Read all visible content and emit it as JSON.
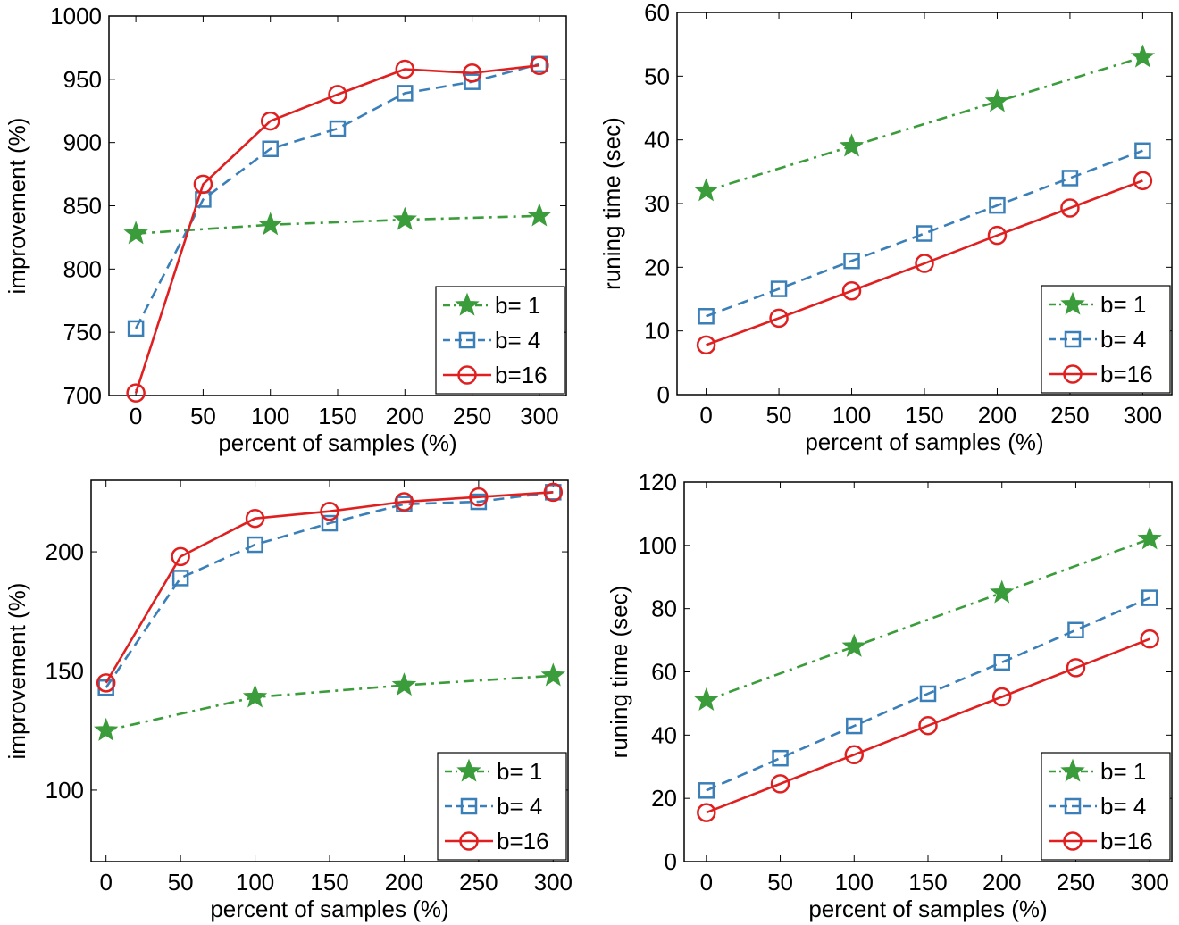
{
  "chart_data": [
    {
      "type": "line",
      "xlabel": "percent of samples (%)",
      "ylabel": "improvement (%)",
      "x": [
        0,
        50,
        100,
        150,
        200,
        250,
        300
      ],
      "xticks": [
        "0",
        "50",
        "100",
        "150",
        "200",
        "250",
        "300"
      ],
      "xlim": [
        -20,
        320
      ],
      "ylim": [
        700,
        1000
      ],
      "yticks": [
        "700",
        "750",
        "800",
        "850",
        "900",
        "950",
        "1000"
      ],
      "legend_position": "bottom-right",
      "series": [
        {
          "name": "b= 1",
          "color": "#3a9c3a",
          "marker": "star",
          "line": "dashdot",
          "points": [
            [
              0,
              828
            ],
            [
              100,
              835
            ],
            [
              200,
              839
            ],
            [
              300,
              842
            ]
          ]
        },
        {
          "name": "b= 4",
          "color": "#3a7fb8",
          "marker": "square",
          "line": "dashed",
          "points": [
            [
              0,
              753
            ],
            [
              50,
              855
            ],
            [
              100,
              895
            ],
            [
              150,
              911
            ],
            [
              200,
              939
            ],
            [
              250,
              948
            ],
            [
              300,
              962
            ]
          ]
        },
        {
          "name": "b=16",
          "color": "#e02020",
          "marker": "circle",
          "line": "solid",
          "points": [
            [
              0,
              702
            ],
            [
              50,
              867
            ],
            [
              100,
              917
            ],
            [
              150,
              938
            ],
            [
              200,
              958
            ],
            [
              250,
              955
            ],
            [
              300,
              961
            ]
          ]
        }
      ]
    },
    {
      "type": "line",
      "xlabel": "percent of samples (%)",
      "ylabel": "runing time (sec)",
      "x": [
        0,
        50,
        100,
        150,
        200,
        250,
        300
      ],
      "xticks": [
        "0",
        "50",
        "100",
        "150",
        "200",
        "250",
        "300"
      ],
      "xlim": [
        -20,
        320
      ],
      "ylim": [
        0,
        60
      ],
      "yticks": [
        "0",
        "10",
        "20",
        "30",
        "40",
        "50",
        "60"
      ],
      "legend_position": "bottom-right",
      "series": [
        {
          "name": "b= 1",
          "color": "#3a9c3a",
          "marker": "star",
          "line": "dashdot",
          "points": [
            [
              0,
              32
            ],
            [
              100,
              39
            ],
            [
              200,
              46
            ],
            [
              300,
              53
            ]
          ]
        },
        {
          "name": "b= 4",
          "color": "#3a7fb8",
          "marker": "square",
          "line": "dashed",
          "points": [
            [
              0,
              12.3
            ],
            [
              50,
              16.6
            ],
            [
              100,
              21
            ],
            [
              150,
              25.3
            ],
            [
              200,
              29.7
            ],
            [
              250,
              34
            ],
            [
              300,
              38.3
            ]
          ]
        },
        {
          "name": "b=16",
          "color": "#e02020",
          "marker": "circle",
          "line": "solid",
          "points": [
            [
              0,
              7.8
            ],
            [
              50,
              12
            ],
            [
              100,
              16.3
            ],
            [
              150,
              20.6
            ],
            [
              200,
              25
            ],
            [
              250,
              29.3
            ],
            [
              300,
              33.6
            ]
          ]
        }
      ]
    },
    {
      "type": "line",
      "xlabel": "percent of samples (%)",
      "ylabel": "improvement (%)",
      "x": [
        0,
        50,
        100,
        150,
        200,
        250,
        300
      ],
      "xticks": [
        "0",
        "50",
        "100",
        "150",
        "200",
        "250",
        "300"
      ],
      "xlim": [
        -10,
        310
      ],
      "ylim": [
        70,
        230
      ],
      "yticks": [
        "100",
        "150",
        "200"
      ],
      "legend_position": "bottom-right",
      "series": [
        {
          "name": "b= 1",
          "color": "#3a9c3a",
          "marker": "star",
          "line": "dashdot",
          "points": [
            [
              0,
              125
            ],
            [
              100,
              139
            ],
            [
              200,
              144
            ],
            [
              300,
              148
            ]
          ]
        },
        {
          "name": "b= 4",
          "color": "#3a7fb8",
          "marker": "square",
          "line": "dashed",
          "points": [
            [
              0,
              143
            ],
            [
              50,
              189
            ],
            [
              100,
              203
            ],
            [
              150,
              212
            ],
            [
              200,
              220
            ],
            [
              250,
              221
            ],
            [
              300,
              225
            ]
          ]
        },
        {
          "name": "b=16",
          "color": "#e02020",
          "marker": "circle",
          "line": "solid",
          "points": [
            [
              0,
              145
            ],
            [
              50,
              198
            ],
            [
              100,
              214
            ],
            [
              150,
              217
            ],
            [
              200,
              221
            ],
            [
              250,
              223
            ],
            [
              300,
              225
            ]
          ]
        }
      ]
    },
    {
      "type": "line",
      "xlabel": "percent of samples (%)",
      "ylabel": "runing time (sec)",
      "x": [
        0,
        50,
        100,
        150,
        200,
        250,
        300
      ],
      "xticks": [
        "0",
        "50",
        "100",
        "150",
        "200",
        "250",
        "300"
      ],
      "xlim": [
        -15,
        315
      ],
      "ylim": [
        0,
        120
      ],
      "yticks": [
        "0",
        "20",
        "40",
        "60",
        "80",
        "100",
        "120"
      ],
      "legend_position": "bottom-right",
      "series": [
        {
          "name": "b= 1",
          "color": "#3a9c3a",
          "marker": "star",
          "line": "dashdot",
          "points": [
            [
              0,
              51
            ],
            [
              100,
              68
            ],
            [
              200,
              85
            ],
            [
              300,
              102
            ]
          ]
        },
        {
          "name": "b= 4",
          "color": "#3a7fb8",
          "marker": "square",
          "line": "dashed",
          "points": [
            [
              0,
              22.5
            ],
            [
              50,
              32.7
            ],
            [
              100,
              42.9
            ],
            [
              150,
              53.1
            ],
            [
              200,
              63
            ],
            [
              250,
              73.2
            ],
            [
              300,
              83.4
            ]
          ]
        },
        {
          "name": "b=16",
          "color": "#e02020",
          "marker": "circle",
          "line": "solid",
          "points": [
            [
              0,
              15.5
            ],
            [
              50,
              24.6
            ],
            [
              100,
              33.8
            ],
            [
              150,
              43
            ],
            [
              200,
              52.1
            ],
            [
              250,
              61.3
            ],
            [
              300,
              70.4
            ]
          ]
        }
      ]
    }
  ]
}
